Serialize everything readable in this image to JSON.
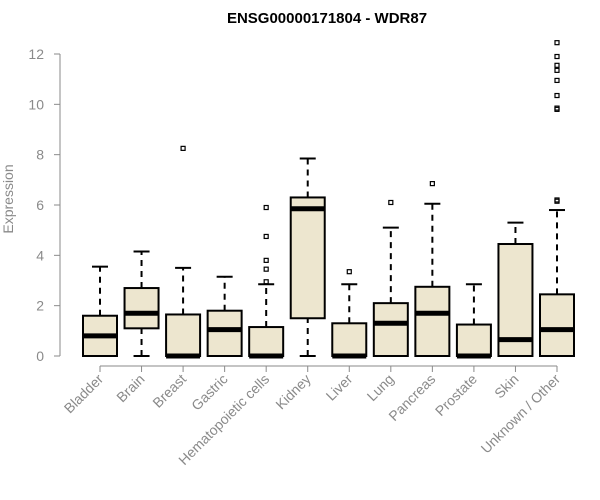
{
  "chart_data": {
    "type": "boxplot",
    "title": "ENSG00000171804 - WDR87",
    "ylabel": "Expression",
    "xlabel": "",
    "ylim": [
      0,
      12
    ],
    "yticks": [
      0,
      2,
      4,
      6,
      8,
      10,
      12
    ],
    "box_fill": "#ede6cf",
    "categories": [
      "Bladder",
      "Brain",
      "Breast",
      "Gastric",
      "Hematopoietic cells",
      "Kidney",
      "Liver",
      "Lung",
      "Pancreas",
      "Prostate",
      "Skin",
      "Unknown / Other"
    ],
    "boxes": [
      {
        "whisker_low": 0,
        "q1": 0,
        "median": 0.8,
        "q3": 1.6,
        "whisker_high": 3.55,
        "outliers": []
      },
      {
        "whisker_low": 0,
        "q1": 1.1,
        "median": 1.7,
        "q3": 2.7,
        "whisker_high": 4.15,
        "outliers": []
      },
      {
        "whisker_low": 0,
        "q1": 0,
        "median": 0,
        "q3": 1.65,
        "whisker_high": 3.5,
        "outliers": [
          8.25
        ]
      },
      {
        "whisker_low": 0,
        "q1": 0,
        "median": 1.05,
        "q3": 1.8,
        "whisker_high": 3.15,
        "outliers": []
      },
      {
        "whisker_low": 0,
        "q1": 0,
        "median": 0,
        "q3": 1.15,
        "whisker_high": 2.85,
        "outliers": [
          2.95,
          3.45,
          3.8,
          4.75,
          5.9
        ]
      },
      {
        "whisker_low": 0,
        "q1": 1.5,
        "median": 5.85,
        "q3": 6.3,
        "whisker_high": 7.85,
        "outliers": []
      },
      {
        "whisker_low": 0,
        "q1": 0,
        "median": 0,
        "q3": 1.3,
        "whisker_high": 2.85,
        "outliers": [
          3.35
        ]
      },
      {
        "whisker_low": 0,
        "q1": 0,
        "median": 1.3,
        "q3": 2.1,
        "whisker_high": 5.1,
        "outliers": [
          6.1
        ]
      },
      {
        "whisker_low": 0,
        "q1": 0,
        "median": 1.7,
        "q3": 2.75,
        "whisker_high": 6.05,
        "outliers": [
          6.85
        ]
      },
      {
        "whisker_low": 0,
        "q1": 0,
        "median": 0,
        "q3": 1.25,
        "whisker_high": 2.85,
        "outliers": []
      },
      {
        "whisker_low": 0,
        "q1": 0,
        "median": 0.65,
        "q3": 4.45,
        "whisker_high": 5.3,
        "outliers": []
      },
      {
        "whisker_low": 0,
        "q1": 0,
        "median": 1.05,
        "q3": 2.45,
        "whisker_high": 5.8,
        "outliers": [
          6.15,
          6.2,
          9.8,
          9.85,
          10.35,
          10.95,
          11.35,
          11.55,
          11.9,
          12.45
        ]
      }
    ]
  }
}
